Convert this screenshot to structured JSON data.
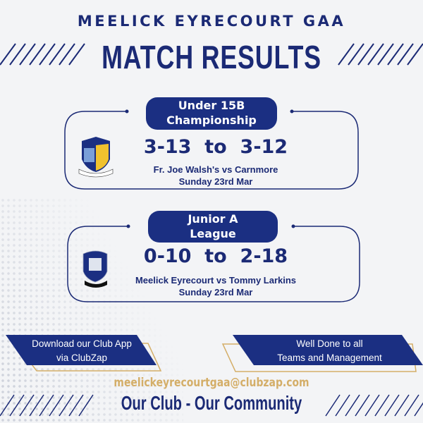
{
  "header": {
    "club_name": "MEELICK EYRECOURT GAA",
    "title": "MATCH RESULTS"
  },
  "results": [
    {
      "competition_line1": "Under 15B",
      "competition_line2": "Championship",
      "score": "3-13  to  3-12",
      "teams": "Fr. Joe Walsh's vs Carnmore",
      "date": "Sunday 23rd Mar",
      "crest": "fr-joe-walshs-crest"
    },
    {
      "competition_line1": "Junior A",
      "competition_line2": "League",
      "score": "0-10  to  2-18",
      "teams": "Meelick Eyrecourt vs Tommy Larkins",
      "date": "Sunday 23rd Mar",
      "crest": "meelick-eyrecourt-crest"
    }
  ],
  "banners": {
    "left_line1": "Download our Club App",
    "left_line2": "via ClubZap",
    "right_line1": "Well Done to all",
    "right_line2": "Teams and Management"
  },
  "footer": {
    "email": "meelickeyrecourtgaa@clubzap.com",
    "motto": "Our Club - Our Community"
  },
  "colors": {
    "navy": "#1b2f82",
    "gold": "#d4ae68",
    "background": "#f3f4f6"
  }
}
